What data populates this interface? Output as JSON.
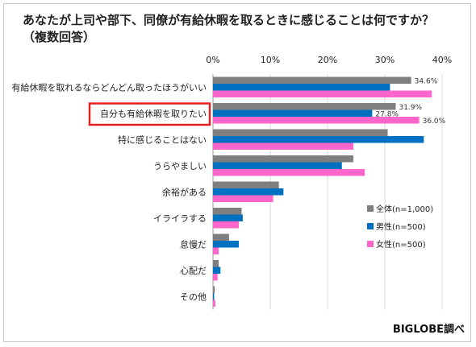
{
  "title_line1": "あなたが上司や部下、同僚が有給休暇を取るときに感じることは何ですか？",
  "title_line2": "（複数回答）",
  "source": "BIGLOBE調べ",
  "colors": {
    "全体": "#7f7f7f",
    "男性": "#0070c0",
    "女性": "#ff66cc",
    "highlight": "#e32020",
    "grid": "#d9d9d9"
  },
  "chart_data": {
    "type": "bar",
    "orientation": "horizontal",
    "xlim": [
      0,
      40
    ],
    "xticks": [
      "0%",
      "10%",
      "20%",
      "30%",
      "40%"
    ],
    "xtick_values": [
      0,
      10,
      20,
      30,
      40
    ],
    "grid": true,
    "legend_position": "bottom-right",
    "categories": [
      "有給休暇を取れるならどんどん取ったほうがいい",
      "自分も有給休暇を取りたい",
      "特に感じることはない",
      "うらやましい",
      "余裕がある",
      "イライラする",
      "怠慢だ",
      "心配だ",
      "その他"
    ],
    "highlighted_category": "自分も有給休暇を取りたい",
    "series": [
      {
        "name": "全体(n=1,000)",
        "color": "#7f7f7f",
        "values": [
          34.6,
          31.9,
          30.5,
          24.5,
          11.5,
          5.0,
          2.8,
          1.0,
          0.3
        ]
      },
      {
        "name": "男性(n=500)",
        "color": "#0070c0",
        "values": [
          30.9,
          27.8,
          36.8,
          22.5,
          12.3,
          5.2,
          4.5,
          1.3,
          0.2
        ]
      },
      {
        "name": "女性(n=500)",
        "color": "#ff66cc",
        "values": [
          38.2,
          36.0,
          24.5,
          26.5,
          10.5,
          4.5,
          1.0,
          0.8,
          0.4
        ]
      }
    ],
    "data_labels": [
      {
        "category_index": 0,
        "series_index": 0,
        "text": "34.6%"
      },
      {
        "category_index": 1,
        "series_index": 0,
        "text": "31.9%"
      },
      {
        "category_index": 1,
        "series_index": 1,
        "text": "27.8%"
      },
      {
        "category_index": 1,
        "series_index": 2,
        "text": "36.0%"
      }
    ]
  }
}
